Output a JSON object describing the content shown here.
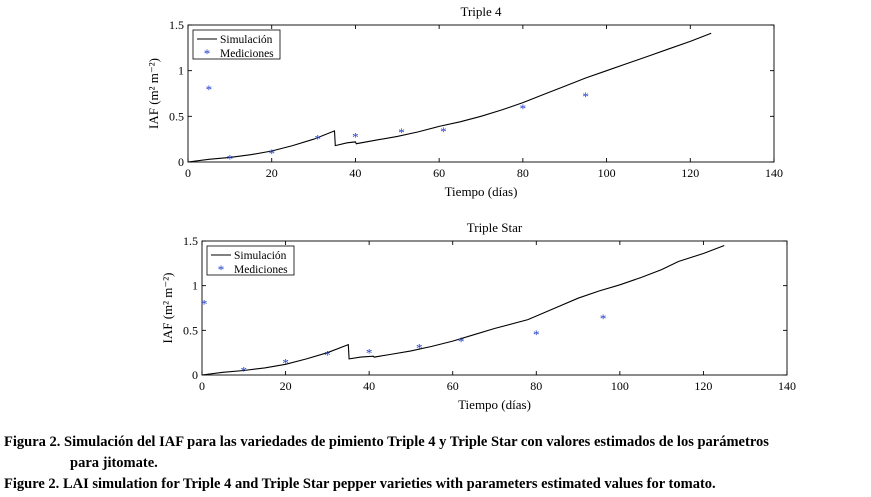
{
  "chart_data": [
    {
      "type": "line",
      "title": "Triple 4",
      "xlabel": "Tiempo (días)",
      "ylabel": "IAF (m² m⁻²)",
      "xlim": [
        0,
        140
      ],
      "ylim": [
        0,
        1.5
      ],
      "xticks": [
        0,
        20,
        40,
        60,
        80,
        100,
        120,
        140
      ],
      "yticks": [
        0,
        0.5,
        1,
        1.5
      ],
      "grid": false,
      "legend_position": "top-left",
      "series": [
        {
          "name": "Simulación",
          "kind": "line",
          "color": "#000000",
          "x": [
            0,
            5,
            10,
            15,
            20,
            25,
            30,
            35,
            35.2,
            38,
            40,
            40.2,
            45,
            50,
            55,
            60,
            65,
            70,
            75,
            80,
            85,
            90,
            95,
            100,
            105,
            110,
            115,
            120,
            125
          ],
          "y": [
            0,
            0.03,
            0.05,
            0.08,
            0.12,
            0.18,
            0.25,
            0.34,
            0.18,
            0.21,
            0.22,
            0.2,
            0.24,
            0.28,
            0.33,
            0.39,
            0.44,
            0.5,
            0.57,
            0.65,
            0.74,
            0.83,
            0.92,
            1.0,
            1.08,
            1.16,
            1.24,
            1.32,
            1.41
          ]
        },
        {
          "name": "Mediciones",
          "kind": "marker",
          "color": "#1f3cc8",
          "x": [
            5,
            10,
            20,
            31,
            40,
            51,
            61,
            80,
            95
          ],
          "y": [
            0.8,
            0.04,
            0.1,
            0.26,
            0.28,
            0.33,
            0.34,
            0.59,
            0.72
          ]
        }
      ]
    },
    {
      "type": "line",
      "title": "Triple Star",
      "xlabel": "Tiempo (días)",
      "ylabel": "IAF (m² m⁻²)",
      "xlim": [
        0,
        140
      ],
      "ylim": [
        0,
        1.5
      ],
      "xticks": [
        0,
        20,
        40,
        60,
        80,
        100,
        120,
        140
      ],
      "yticks": [
        0,
        0.5,
        1,
        1.5
      ],
      "grid": false,
      "legend_position": "top-left",
      "series": [
        {
          "name": "Simulación",
          "kind": "line",
          "color": "#000000",
          "x": [
            0,
            5,
            10,
            15,
            20,
            25,
            30,
            35,
            35.2,
            38,
            41,
            41.2,
            45,
            50,
            55,
            60,
            65,
            70,
            78,
            85,
            90,
            95,
            100,
            105,
            110,
            114,
            120,
            125
          ],
          "y": [
            0,
            0.03,
            0.05,
            0.08,
            0.12,
            0.18,
            0.25,
            0.34,
            0.18,
            0.2,
            0.21,
            0.2,
            0.23,
            0.27,
            0.32,
            0.38,
            0.45,
            0.52,
            0.62,
            0.76,
            0.86,
            0.94,
            1.01,
            1.09,
            1.18,
            1.27,
            1.36,
            1.45
          ]
        },
        {
          "name": "Mediciones",
          "kind": "marker",
          "color": "#1f3cc8",
          "x": [
            0.5,
            10,
            20,
            30,
            40,
            52,
            62,
            80,
            96
          ],
          "y": [
            0.8,
            0.05,
            0.14,
            0.23,
            0.25,
            0.31,
            0.38,
            0.46,
            0.64
          ]
        }
      ]
    }
  ],
  "captions": [
    {
      "label": "Figura 2.",
      "line1": "Simulación del IAF para las variedades de pimiento Triple 4 y Triple Star con valores estimados de los parámetros",
      "line2": "para jitomate."
    },
    {
      "label": "Figure 2.",
      "line1": "LAI simulation for Triple 4 and Triple Star pepper varieties with parameters estimated values for tomato."
    }
  ]
}
